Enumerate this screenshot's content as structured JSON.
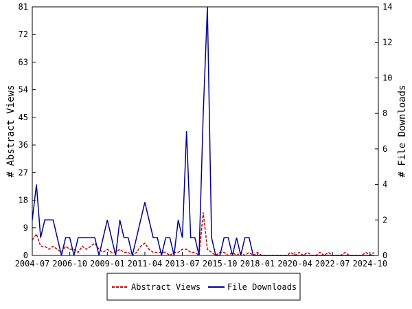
{
  "chart_data": {
    "type": "line",
    "y_label": "# Abstract Views",
    "y2_label": "# File Downloads",
    "x": [
      "2004-07",
      "2004-10",
      "2005-01",
      "2005-04",
      "2005-07",
      "2005-10",
      "2006-01",
      "2006-04",
      "2006-07",
      "2006-10",
      "2007-01",
      "2007-04",
      "2007-07",
      "2007-10",
      "2008-01",
      "2008-04",
      "2008-07",
      "2008-10",
      "2009-01",
      "2009-04",
      "2009-07",
      "2009-10",
      "2010-01",
      "2010-04",
      "2010-07",
      "2010-10",
      "2011-01",
      "2011-04",
      "2011-07",
      "2011-10",
      "2012-01",
      "2012-04",
      "2012-07",
      "2012-10",
      "2013-01",
      "2013-04",
      "2013-07",
      "2013-10",
      "2014-01",
      "2014-04",
      "2014-07",
      "2014-10",
      "2015-01",
      "2015-04",
      "2015-07",
      "2015-10",
      "2016-01",
      "2016-04",
      "2016-07",
      "2016-10",
      "2017-01",
      "2017-04",
      "2017-07",
      "2017-10",
      "2018-01",
      "2018-04",
      "2018-07",
      "2018-10",
      "2019-01",
      "2019-04",
      "2019-07",
      "2019-10",
      "2020-01",
      "2020-04",
      "2020-07",
      "2020-10",
      "2021-01",
      "2021-04",
      "2021-07",
      "2021-10",
      "2022-01",
      "2022-04",
      "2022-07",
      "2022-10",
      "2023-01",
      "2023-04",
      "2023-07",
      "2023-10",
      "2024-01",
      "2024-04",
      "2024-07",
      "2024-10",
      "2025-01"
    ],
    "xlim": [
      "2004-07",
      "2025-04"
    ],
    "xticks": [
      "2004-07",
      "2006-10",
      "2009-01",
      "2011-04",
      "2013-07",
      "2015-10",
      "2018-01",
      "2020-04",
      "2022-07",
      "2024-10"
    ],
    "ylim": [
      0,
      81
    ],
    "yticks": [
      0,
      9,
      18,
      27,
      36,
      45,
      54,
      63,
      72,
      81
    ],
    "y2lim": [
      0,
      14
    ],
    "y2ticks": [
      0,
      2,
      4,
      6,
      8,
      10,
      12,
      14
    ],
    "series": [
      {
        "name": "Abstract Views",
        "color": "#cc0000",
        "dashed": true,
        "values": [
          5,
          7,
          3,
          3,
          2,
          3,
          2,
          1,
          3,
          2,
          2,
          1,
          3,
          2,
          3,
          4,
          2,
          1,
          2,
          1,
          1,
          2,
          1,
          1,
          0,
          1,
          3,
          4,
          2,
          1,
          1,
          1,
          1,
          0,
          1,
          1,
          2,
          2,
          1,
          1,
          0,
          14,
          2,
          1,
          0,
          1,
          1,
          0,
          1,
          0,
          1,
          0,
          1,
          0,
          1,
          0,
          0,
          0,
          0,
          0,
          0,
          0,
          1,
          0,
          1,
          0,
          1,
          0,
          0,
          1,
          0,
          1,
          0,
          0,
          0,
          1,
          0,
          0,
          0,
          0,
          1,
          0,
          1
        ]
      },
      {
        "name": "File Downloads",
        "color": "#000099",
        "axis": "y2",
        "values": [
          2,
          4,
          1,
          2,
          2,
          2,
          1,
          0,
          1,
          1,
          0,
          1,
          1,
          1,
          1,
          1,
          0,
          1,
          2,
          1,
          0,
          2,
          1,
          1,
          0,
          1,
          2,
          3,
          2,
          1,
          1,
          0,
          1,
          1,
          0,
          2,
          1,
          7,
          1,
          1,
          0,
          8,
          14,
          1,
          0,
          0,
          1,
          1,
          0,
          1,
          0,
          1,
          1,
          0,
          0,
          0,
          0,
          0,
          0,
          0,
          0,
          0,
          0,
          0,
          0,
          0,
          0,
          0,
          0,
          0,
          0,
          0,
          0,
          0,
          0,
          0,
          0,
          0,
          0,
          0,
          0,
          0,
          0
        ]
      }
    ]
  }
}
